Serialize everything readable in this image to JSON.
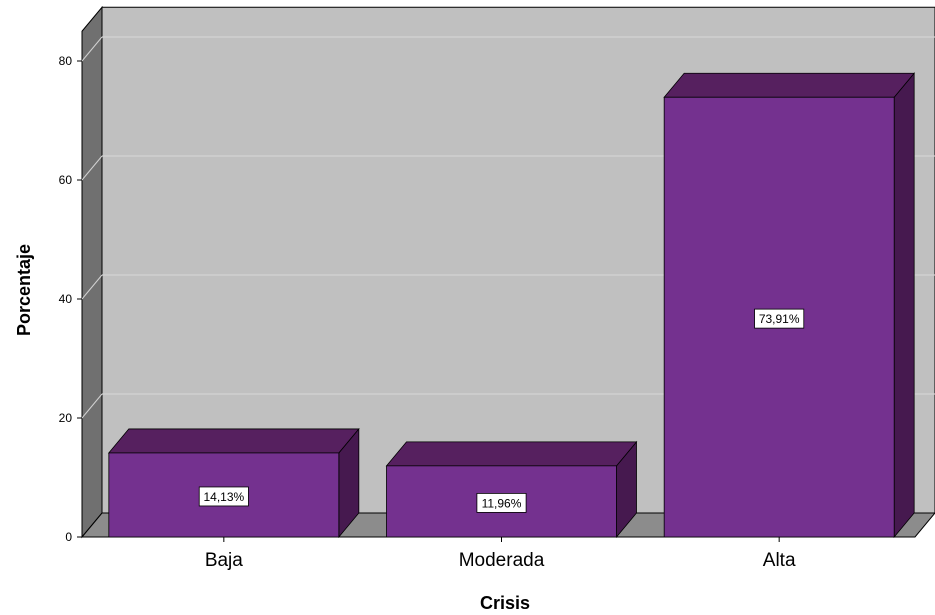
{
  "chart_data": {
    "type": "bar",
    "categories": [
      "Baja",
      "Moderada",
      "Alta"
    ],
    "values": [
      14.13,
      11.96,
      73.91
    ],
    "data_labels": [
      "14,13%",
      "11,96%",
      "73,91%"
    ],
    "xlabel": "Crisis",
    "ylabel": "Porcentaje",
    "ylim": [
      0,
      85
    ],
    "yticks": [
      0,
      20,
      40,
      60,
      80
    ],
    "grid": true,
    "legend": "none",
    "style": "3d",
    "colors": {
      "bar_front": "#74318f",
      "bar_top": "#56205f",
      "bar_side": "#46194f",
      "wall": "#c0c0c0",
      "floor": "#8c8c8c",
      "side_wall": "#707070",
      "gridline": "#d2d2d2"
    }
  }
}
